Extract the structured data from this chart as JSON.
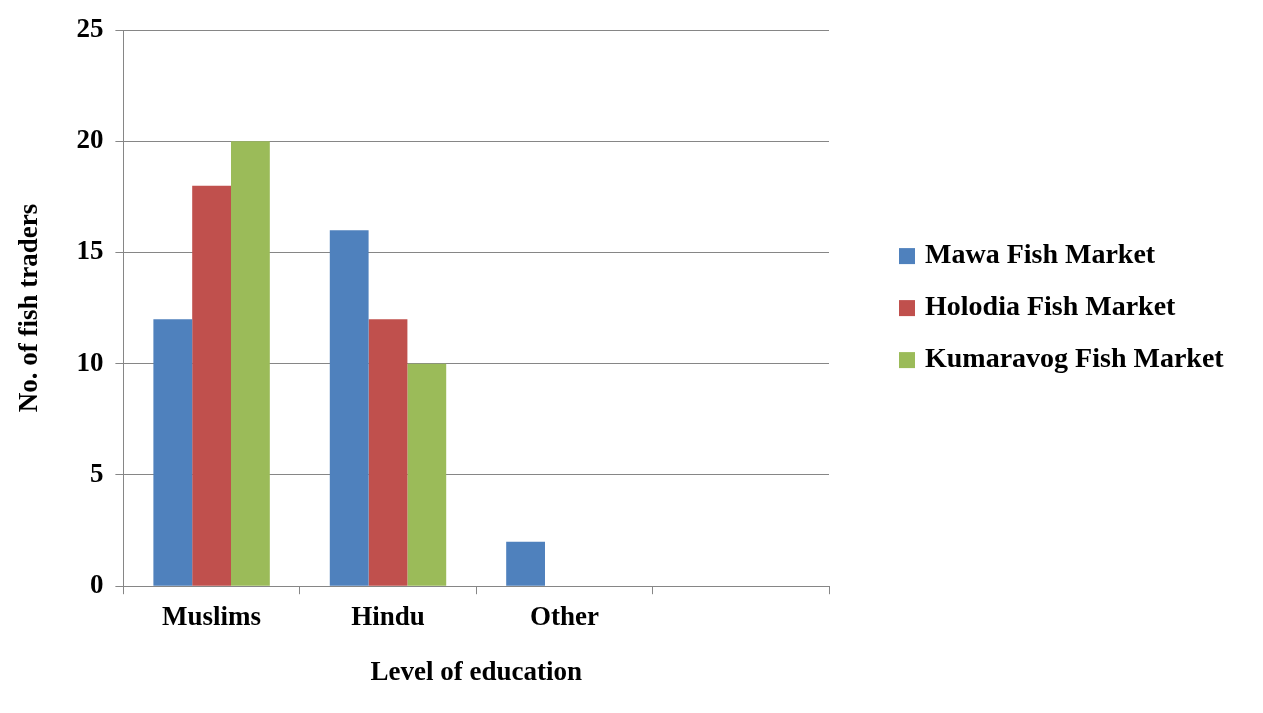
{
  "chart_data": {
    "type": "bar",
    "xlabel": "Level of education",
    "ylabel": "No. of fish traders",
    "categories": [
      "Muslims",
      "Hindu",
      "Other",
      null
    ],
    "series": [
      {
        "name": "Mawa Fish Market",
        "color": "#4f81bd",
        "values": [
          12,
          16,
          2,
          null
        ]
      },
      {
        "name": "Holodia Fish Market",
        "color": "#c0504d",
        "values": [
          18,
          12,
          0,
          null
        ]
      },
      {
        "name": "Kumaravog Fish Market",
        "color": "#9bbb59",
        "values": [
          20,
          10,
          0,
          null
        ]
      }
    ],
    "ylim": [
      0,
      25
    ],
    "yticks": [
      0,
      5,
      10,
      15,
      20,
      25
    ],
    "grid": "y",
    "legend": "right"
  }
}
